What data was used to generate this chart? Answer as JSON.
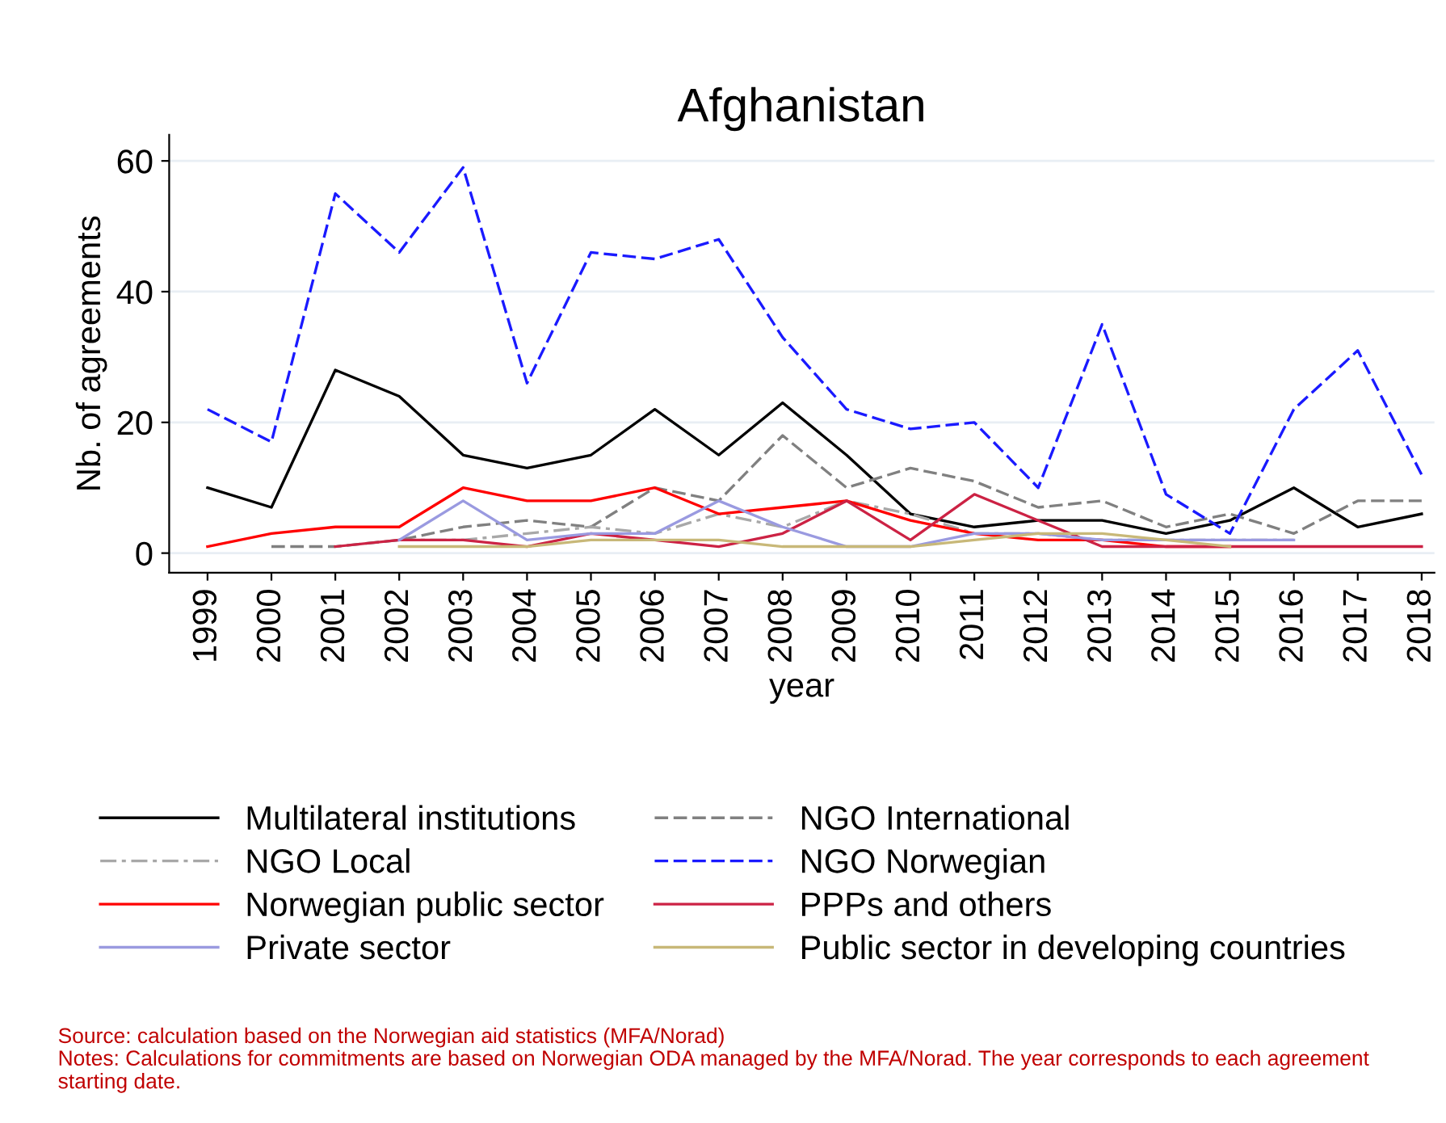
{
  "chart_data": {
    "type": "line",
    "title": "Afghanistan",
    "xlabel": "year",
    "ylabel": "Nb. of agreements",
    "categories": [
      "1999",
      "2000",
      "2001",
      "2002",
      "2003",
      "2004",
      "2005",
      "2006",
      "2007",
      "2008",
      "2009",
      "2010",
      "2011",
      "2012",
      "2013",
      "2014",
      "2015",
      "2016",
      "2017",
      "2018"
    ],
    "ylim": [
      -3,
      64
    ],
    "yticks": [
      0,
      20,
      40,
      60
    ],
    "grid": "y",
    "legend": "bottom",
    "marker": "none",
    "series": [
      {
        "name": "Multilateral institutions",
        "color": "#000000",
        "line_style": "solid",
        "values": [
          10,
          7,
          28,
          24,
          15,
          13,
          15,
          22,
          15,
          23,
          15,
          6,
          4,
          5,
          5,
          3,
          5,
          10,
          4,
          6
        ]
      },
      {
        "name": "NGO International",
        "color": "#808080",
        "line_style": "dashed",
        "values": [
          null,
          1,
          1,
          2,
          4,
          5,
          4,
          10,
          8,
          18,
          10,
          13,
          11,
          7,
          8,
          4,
          6,
          3,
          8,
          8
        ]
      },
      {
        "name": "NGO Local",
        "color": "#a8a8a8",
        "line_style": "dashdot",
        "values": [
          null,
          null,
          null,
          2,
          2,
          3,
          4,
          3,
          6,
          4,
          8,
          6,
          3,
          3,
          2,
          2,
          2,
          2,
          null,
          null
        ]
      },
      {
        "name": "NGO Norwegian",
        "color": "#1a1aff",
        "line_style": "dashed",
        "values": [
          22,
          17,
          55,
          46,
          59,
          26,
          46,
          45,
          48,
          33,
          22,
          19,
          20,
          10,
          35,
          9,
          3,
          22,
          31,
          12
        ]
      },
      {
        "name": "Norwegian public sector",
        "color": "#ff0000",
        "line_style": "solid",
        "values": [
          1,
          3,
          4,
          4,
          10,
          8,
          8,
          10,
          6,
          7,
          8,
          5,
          3,
          2,
          2,
          1,
          1,
          null,
          null,
          null
        ]
      },
      {
        "name": "PPPs and others",
        "color": "#cc2244",
        "line_style": "solid",
        "values": [
          null,
          null,
          1,
          2,
          2,
          1,
          3,
          2,
          1,
          3,
          8,
          2,
          9,
          5,
          1,
          1,
          1,
          1,
          1,
          1
        ]
      },
      {
        "name": "Private sector",
        "color": "#9a9ae0",
        "line_style": "solid",
        "values": [
          null,
          null,
          null,
          2,
          8,
          2,
          3,
          3,
          8,
          4,
          1,
          1,
          3,
          3,
          2,
          2,
          2,
          2,
          null,
          null
        ]
      },
      {
        "name": "Public sector in developing countries",
        "color": "#c8b878",
        "line_style": "solid",
        "values": [
          null,
          null,
          null,
          1,
          1,
          1,
          2,
          2,
          2,
          1,
          1,
          1,
          2,
          3,
          3,
          2,
          1,
          null,
          null,
          null
        ]
      }
    ],
    "annotations": [
      "Source: calculation based on the Norwegian aid statistics (MFA/Norad)",
      "Notes: Calculations for commitments are based on Norwegian ODA managed by the MFA/Norad. The year corresponds to each agreement starting date."
    ]
  }
}
